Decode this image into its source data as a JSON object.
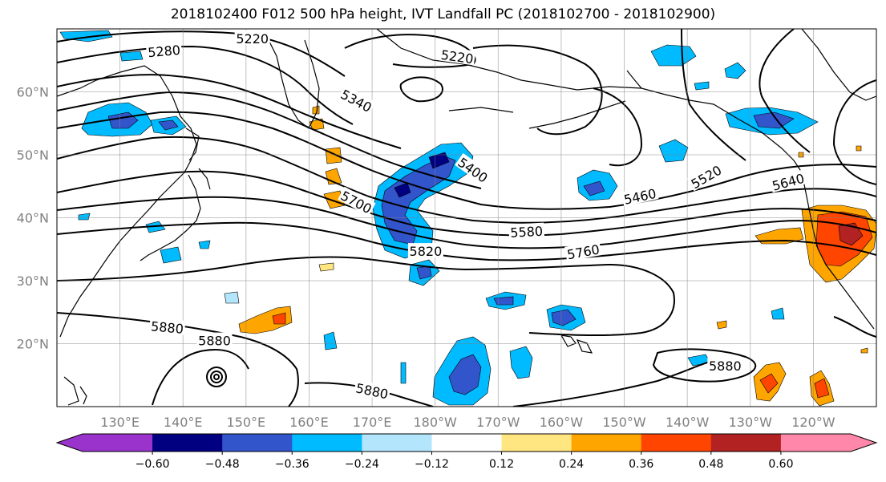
{
  "title": "2018102400 F012 500 hPa height, IVT Landfall PC (2018102700 - 2018102900)",
  "map": {
    "lon_range": [
      120,
      250
    ],
    "lat_range": [
      10,
      70
    ],
    "lon_ticks": [
      {
        "lon": 130,
        "label": "130°E"
      },
      {
        "lon": 140,
        "label": "140°E"
      },
      {
        "lon": 150,
        "label": "150°E"
      },
      {
        "lon": 160,
        "label": "160°E"
      },
      {
        "lon": 170,
        "label": "170°E"
      },
      {
        "lon": 180,
        "label": "180°W"
      },
      {
        "lon": 190,
        "label": "170°W"
      },
      {
        "lon": 200,
        "label": "160°W"
      },
      {
        "lon": 210,
        "label": "150°W"
      },
      {
        "lon": 220,
        "label": "140°W"
      },
      {
        "lon": 230,
        "label": "130°W"
      },
      {
        "lon": 240,
        "label": "120°W"
      }
    ],
    "lat_ticks": [
      {
        "lat": 20,
        "label": "20°N"
      },
      {
        "lat": 30,
        "label": "30°N"
      },
      {
        "lat": 40,
        "label": "40°N"
      },
      {
        "lat": 50,
        "label": "50°N"
      },
      {
        "lat": 60,
        "label": "60°N"
      }
    ],
    "grid": true,
    "contour_labels": [
      {
        "text": "5220",
        "lon": 151,
        "lat": 68.5,
        "rot": 0
      },
      {
        "text": "5280",
        "lon": 137,
        "lat": 66.5,
        "rot": -5
      },
      {
        "text": "5220",
        "lon": 183.5,
        "lat": 65.6,
        "rot": 8
      },
      {
        "text": "5340",
        "lon": 167.5,
        "lat": 58.6,
        "rot": 28
      },
      {
        "text": "5400",
        "lon": 186,
        "lat": 47.6,
        "rot": 35
      },
      {
        "text": "5700",
        "lon": 167.5,
        "lat": 42.5,
        "rot": 28
      },
      {
        "text": "5460",
        "lon": 212.5,
        "lat": 43.4,
        "rot": -12
      },
      {
        "text": "5520",
        "lon": 223,
        "lat": 46.5,
        "rot": -30
      },
      {
        "text": "5640",
        "lon": 236,
        "lat": 45.7,
        "rot": -15
      },
      {
        "text": "5580",
        "lon": 194.5,
        "lat": 37.8,
        "rot": -3
      },
      {
        "text": "5760",
        "lon": 203.5,
        "lat": 34.6,
        "rot": -10
      },
      {
        "text": "5820",
        "lon": 178.5,
        "lat": 34.7,
        "rot": 0
      },
      {
        "text": "5880",
        "lon": 137.5,
        "lat": 22.6,
        "rot": 5
      },
      {
        "text": "5880",
        "lon": 145,
        "lat": 20.5,
        "rot": 0
      },
      {
        "text": "5880",
        "lon": 170,
        "lat": 12.5,
        "rot": 12
      },
      {
        "text": "5880",
        "lon": 226,
        "lat": 16.5,
        "rot": 0
      }
    ]
  },
  "colorbar": {
    "levels": [
      -0.6,
      -0.48,
      -0.36,
      -0.24,
      -0.12,
      0.12,
      0.24,
      0.36,
      0.48,
      0.6
    ],
    "tick_labels": [
      "−0.60",
      "−0.48",
      "−0.36",
      "−0.24",
      "−0.12",
      "0.12",
      "0.24",
      "0.36",
      "0.48",
      "0.60"
    ],
    "colors": [
      "#9933cc",
      "#000080",
      "#3355cc",
      "#00bbff",
      "#b3e5fc",
      "#ffffff",
      "#ffe680",
      "#ffa500",
      "#ff4500",
      "#b22222",
      "#ff88aa"
    ],
    "extend": "both"
  },
  "colors": {
    "blue_light": "#00bbff",
    "blue_mid": "#3355cc",
    "blue_dark": "#000080",
    "blue_pale": "#b3e5fc",
    "yellow": "#ffe680",
    "orange": "#ffa500",
    "red": "#ff4500"
  }
}
